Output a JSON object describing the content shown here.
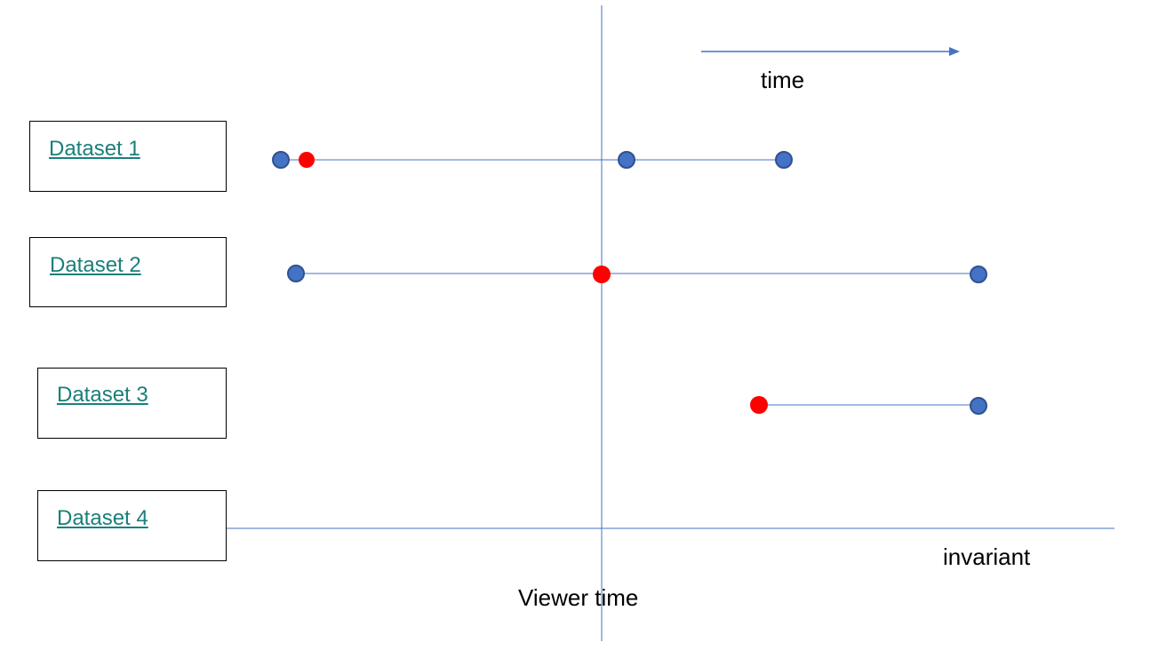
{
  "datasets": [
    {
      "label": "Dataset 1"
    },
    {
      "label": "Dataset 2"
    },
    {
      "label": "Dataset 3"
    },
    {
      "label": "Dataset 4"
    }
  ],
  "labels": {
    "time": "time",
    "viewer_time": "Viewer time",
    "invariant": "invariant"
  },
  "colors": {
    "line": "#4472c4",
    "blue_point": "#4472c4",
    "red_point": "#ff0000",
    "link": "#1a7f7a"
  }
}
